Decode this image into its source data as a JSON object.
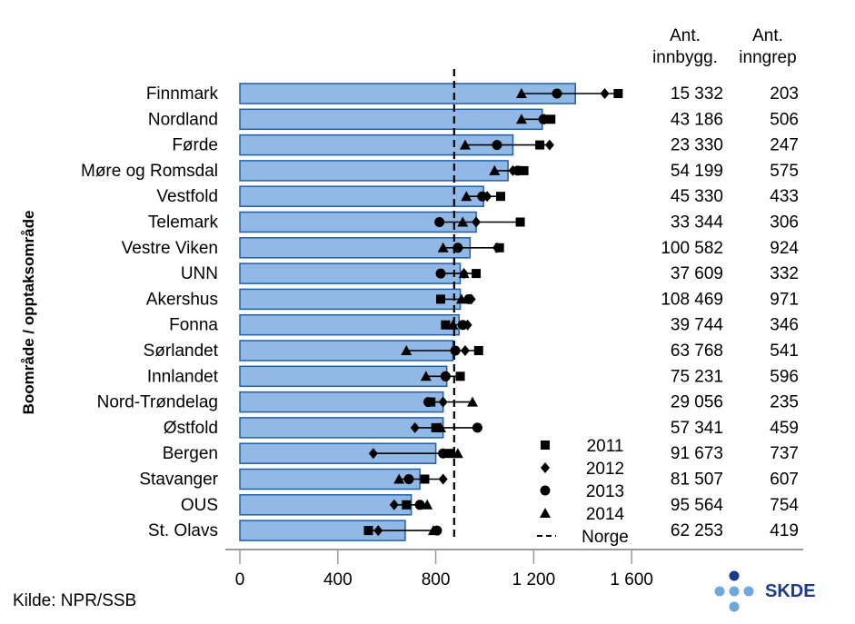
{
  "chart_data": {
    "type": "bar",
    "orientation": "horizontal",
    "ylabel": "Boområde / opptaksområde",
    "source": "Kilde: NPR/SSB",
    "logo_text": "SKDE",
    "columns": {
      "pop_header": [
        "Ant.",
        "innbygg."
      ],
      "proc_header": [
        "Ant.",
        "inngrep"
      ]
    },
    "xlim": [
      0,
      1600
    ],
    "xticks": [
      {
        "value": 0,
        "label": "0"
      },
      {
        "value": 400,
        "label": "400"
      },
      {
        "value": 800,
        "label": "800"
      },
      {
        "value": 1200,
        "label": "1 200"
      },
      {
        "value": 1600,
        "label": "1 600"
      }
    ],
    "norge_value": 875,
    "categories": [
      "Finnmark",
      "Nordland",
      "Førde",
      "Møre og Romsdal",
      "Vestfold",
      "Telemark",
      "Vestre Viken",
      "UNN",
      "Akershus",
      "Fonna",
      "Sørlandet",
      "Innlandet",
      "Nord-Trøndelag",
      "Østfold",
      "Bergen",
      "Stavanger",
      "OUS",
      "St. Olavs"
    ],
    "values": [
      1370,
      1235,
      1115,
      1095,
      995,
      965,
      940,
      900,
      900,
      895,
      870,
      845,
      830,
      830,
      800,
      735,
      700,
      675
    ],
    "population": [
      "15 332",
      "43 186",
      "23 330",
      "54 199",
      "45 330",
      "33 344",
      "100 582",
      "37 609",
      "108 469",
      "39 744",
      "63 768",
      "75 231",
      "29 056",
      "57 341",
      "91 673",
      "81 507",
      "95 564",
      "62 253"
    ],
    "procedures": [
      "203",
      "506",
      "247",
      "575",
      "433",
      "306",
      "924",
      "332",
      "971",
      "346",
      "541",
      "596",
      "235",
      "459",
      "737",
      "607",
      "754",
      "419"
    ],
    "series": [
      {
        "name": "2011",
        "marker": "square",
        "values": [
          1545,
          1270,
          1225,
          1160,
          1065,
          1145,
          1060,
          965,
          820,
          840,
          975,
          900,
          780,
          800,
          860,
          755,
          680,
          525
        ]
      },
      {
        "name": "2012",
        "marker": "diamond",
        "values": [
          1490,
          1245,
          1265,
          1115,
          1010,
          965,
          1050,
          915,
          945,
          930,
          920,
          840,
          830,
          715,
          545,
          830,
          630,
          565
        ]
      },
      {
        "name": "2013",
        "marker": "circle",
        "values": [
          1295,
          1240,
          1050,
          1135,
          990,
          815,
          890,
          820,
          935,
          910,
          880,
          840,
          770,
          970,
          830,
          690,
          735,
          805
        ]
      },
      {
        "name": "2014",
        "marker": "triangle",
        "values": [
          1150,
          1150,
          920,
          1040,
          925,
          910,
          830,
          915,
          905,
          870,
          680,
          760,
          950,
          820,
          890,
          650,
          765,
          790
        ]
      }
    ],
    "legend": [
      {
        "label": "2011",
        "marker": "square"
      },
      {
        "label": "2012",
        "marker": "diamond"
      },
      {
        "label": "2013",
        "marker": "circle"
      },
      {
        "label": "2014",
        "marker": "triangle"
      },
      {
        "label": "Norge",
        "marker": "dashed-line"
      }
    ],
    "legend_position": "bottom-right",
    "colors": {
      "bar_fill": "#92B9E5",
      "bar_stroke": "#1F5FA8",
      "marker": "#000000",
      "logo_dark": "#1B3A8C",
      "logo_light": "#6FA8DC"
    }
  }
}
